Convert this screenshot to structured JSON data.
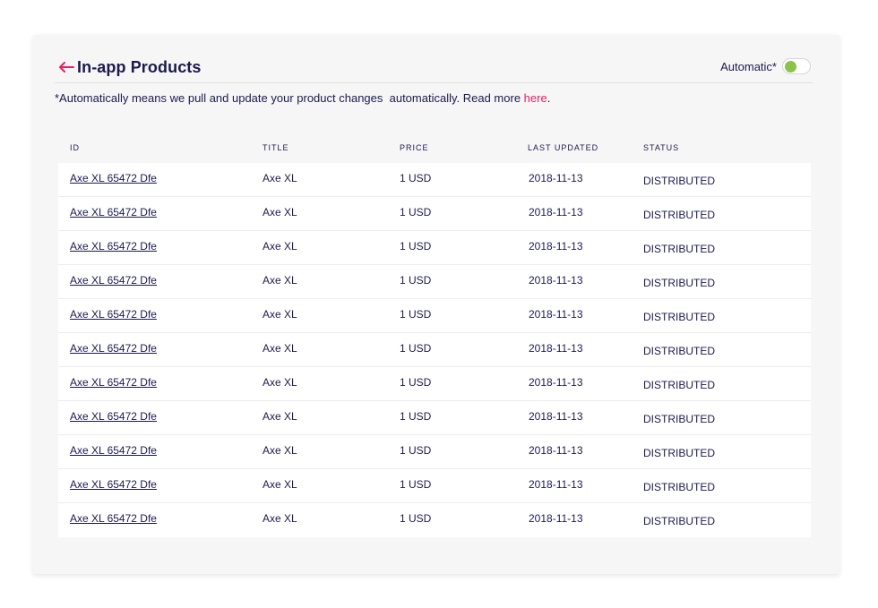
{
  "header": {
    "title": "In-app Products",
    "automatic_label": "Automatic*",
    "toggle_on": true,
    "toggle_color": "#8bc34a",
    "accent_color": "#e91e63"
  },
  "note": {
    "text": "*Automatically means we pull and update your product changes  automatically. Read more ",
    "link_label": "here",
    "suffix": "."
  },
  "table": {
    "columns": [
      "ID",
      "TITLE",
      "PRICE",
      "LAST UPDATED",
      "STATUS"
    ],
    "rows": [
      {
        "id": "Axe XL 65472 Dfe",
        "title": "Axe XL",
        "price": "1 USD",
        "updated": "2018-11-13",
        "status": "DISTRIBUTED"
      },
      {
        "id": "Axe XL 65472 Dfe",
        "title": "Axe XL",
        "price": "1 USD",
        "updated": "2018-11-13",
        "status": "DISTRIBUTED"
      },
      {
        "id": "Axe XL 65472 Dfe",
        "title": "Axe XL",
        "price": "1 USD",
        "updated": "2018-11-13",
        "status": "DISTRIBUTED"
      },
      {
        "id": "Axe XL 65472 Dfe",
        "title": "Axe XL",
        "price": "1 USD",
        "updated": "2018-11-13",
        "status": "DISTRIBUTED"
      },
      {
        "id": "Axe XL 65472 Dfe",
        "title": "Axe XL",
        "price": "1 USD",
        "updated": "2018-11-13",
        "status": "DISTRIBUTED"
      },
      {
        "id": "Axe XL 65472 Dfe",
        "title": "Axe XL",
        "price": "1 USD",
        "updated": "2018-11-13",
        "status": "DISTRIBUTED"
      },
      {
        "id": "Axe XL 65472 Dfe",
        "title": "Axe XL",
        "price": "1 USD",
        "updated": "2018-11-13",
        "status": "DISTRIBUTED"
      },
      {
        "id": "Axe XL 65472 Dfe",
        "title": "Axe XL",
        "price": "1 USD",
        "updated": "2018-11-13",
        "status": "DISTRIBUTED"
      },
      {
        "id": "Axe XL 65472 Dfe",
        "title": "Axe XL",
        "price": "1 USD",
        "updated": "2018-11-13",
        "status": "DISTRIBUTED"
      },
      {
        "id": "Axe XL 65472 Dfe",
        "title": "Axe XL",
        "price": "1 USD",
        "updated": "2018-11-13",
        "status": "DISTRIBUTED"
      },
      {
        "id": "Axe XL 65472 Dfe",
        "title": "Axe XL",
        "price": "1 USD",
        "updated": "2018-11-13",
        "status": "DISTRIBUTED"
      }
    ]
  }
}
